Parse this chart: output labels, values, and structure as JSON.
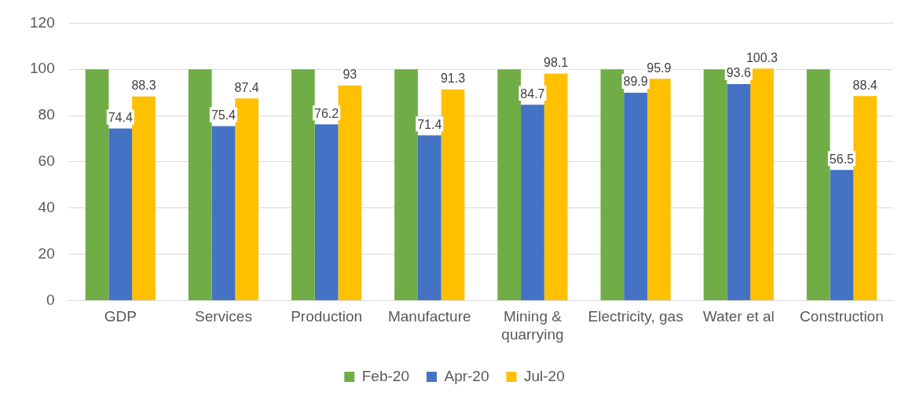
{
  "chart_data": {
    "type": "bar",
    "categories": [
      "GDP",
      "Services",
      "Production",
      "Manufacture",
      "Mining & quarrying",
      "Electricity, gas",
      "Water et al",
      "Construction"
    ],
    "series": [
      {
        "name": "Feb-20",
        "color": "#70ad47",
        "values": [
          100,
          100,
          100,
          100,
          100,
          100,
          100,
          100
        ]
      },
      {
        "name": "Apr-20",
        "color": "#4472c4",
        "values": [
          74.4,
          75.4,
          76.2,
          71.4,
          84.7,
          89.9,
          93.6,
          56.5
        ],
        "value_labels": [
          "74.4",
          "75.4",
          "76.2",
          "71.4",
          "84.7",
          "89.9",
          "93.6",
          "56.5"
        ]
      },
      {
        "name": "Jul-20",
        "color": "#ffc000",
        "values": [
          88.3,
          87.4,
          93,
          91.3,
          98.1,
          95.9,
          100.3,
          88.4
        ],
        "value_labels": [
          "88.3",
          "87.4",
          "93",
          "91.3",
          "98.1",
          "95.9",
          "100.3",
          "88.4"
        ]
      }
    ],
    "ylim": [
      0,
      120
    ],
    "yticks": [
      0,
      20,
      40,
      60,
      80,
      100,
      120
    ],
    "grid": "y",
    "legend": "bottom"
  }
}
